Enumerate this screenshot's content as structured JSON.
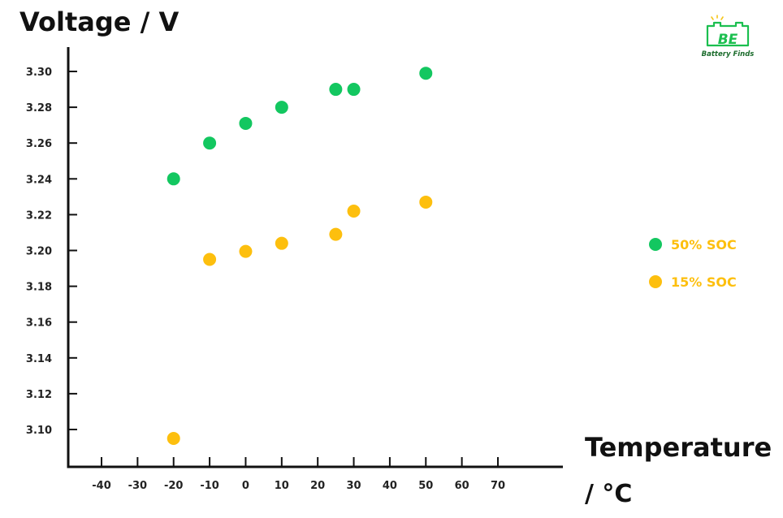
{
  "logo": {
    "name": "Battery Finds"
  },
  "chart_data": {
    "type": "scatter",
    "title": "",
    "ylabel": "Voltage / V",
    "xlabel_line1": "Temperature",
    "xlabel_line2": "/ °C",
    "xlim": [
      -50,
      80
    ],
    "ylim": [
      3.08,
      3.32
    ],
    "x_ticks": [
      -40,
      -30,
      -20,
      -10,
      0,
      10,
      20,
      30,
      40,
      50,
      60,
      70
    ],
    "y_ticks": [
      3.1,
      3.12,
      3.14,
      3.16,
      3.18,
      3.2,
      3.22,
      3.24,
      3.26,
      3.28,
      3.3
    ],
    "grid": false,
    "legend_position": "right",
    "series": [
      {
        "name": "50% SOC",
        "color": "#13c760",
        "points": [
          {
            "x": -20,
            "y": 3.24
          },
          {
            "x": -10,
            "y": 3.26
          },
          {
            "x": 0,
            "y": 3.271
          },
          {
            "x": 10,
            "y": 3.28
          },
          {
            "x": 25,
            "y": 3.29
          },
          {
            "x": 30,
            "y": 3.29
          },
          {
            "x": 50,
            "y": 3.299
          }
        ]
      },
      {
        "name": "15% SOC",
        "color": "#fdbf0e",
        "points": [
          {
            "x": -20,
            "y": 3.095
          },
          {
            "x": -10,
            "y": 3.195
          },
          {
            "x": 0,
            "y": 3.1995
          },
          {
            "x": 10,
            "y": 3.204
          },
          {
            "x": 25,
            "y": 3.209
          },
          {
            "x": 30,
            "y": 3.222
          },
          {
            "x": 50,
            "y": 3.227
          }
        ]
      }
    ]
  }
}
